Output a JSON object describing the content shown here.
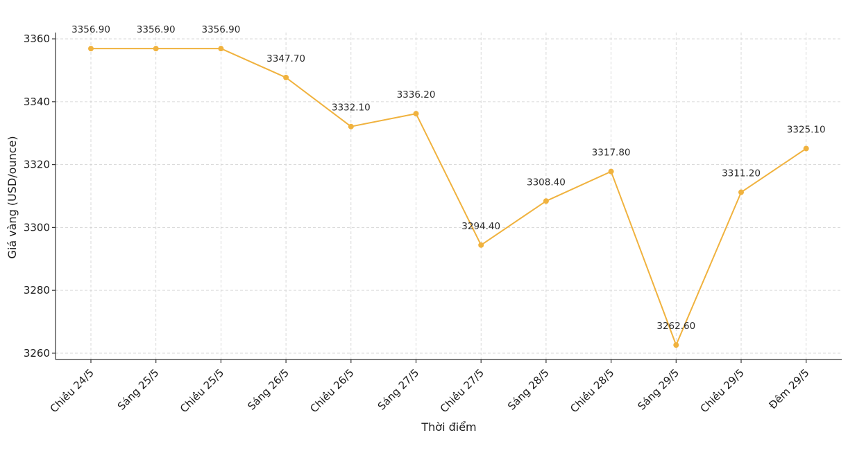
{
  "chart_data": {
    "type": "line",
    "title": "",
    "xlabel": "Thời điểm",
    "ylabel": "Giá vàng (USD/ounce)",
    "categories": [
      "Chiều 24/5",
      "Sáng 25/5",
      "Chiều 25/5",
      "Sáng 26/5",
      "Chiều 26/5",
      "Sáng 27/5",
      "Chiều 27/5",
      "Sáng 28/5",
      "Chiều 28/5",
      "Sáng 29/5",
      "Chiều 29/5",
      "Đêm 29/5"
    ],
    "values": [
      3356.9,
      3356.9,
      3356.9,
      3347.7,
      3332.1,
      3336.2,
      3294.4,
      3308.4,
      3317.8,
      3262.6,
      3311.2,
      3325.1
    ],
    "value_labels": [
      "3356.90",
      "3356.90",
      "3356.90",
      "3347.70",
      "3332.10",
      "3336.20",
      "3294.40",
      "3308.40",
      "3317.80",
      "3262.60",
      "3311.20",
      "3325.10"
    ],
    "yticks": [
      3260,
      3280,
      3300,
      3320,
      3340,
      3360
    ],
    "ytick_labels": [
      "3260",
      "3280",
      "3300",
      "3320",
      "3340",
      "3360"
    ],
    "ylim": [
      3258,
      3362
    ],
    "grid": true,
    "series_color": "#f0b23e"
  }
}
